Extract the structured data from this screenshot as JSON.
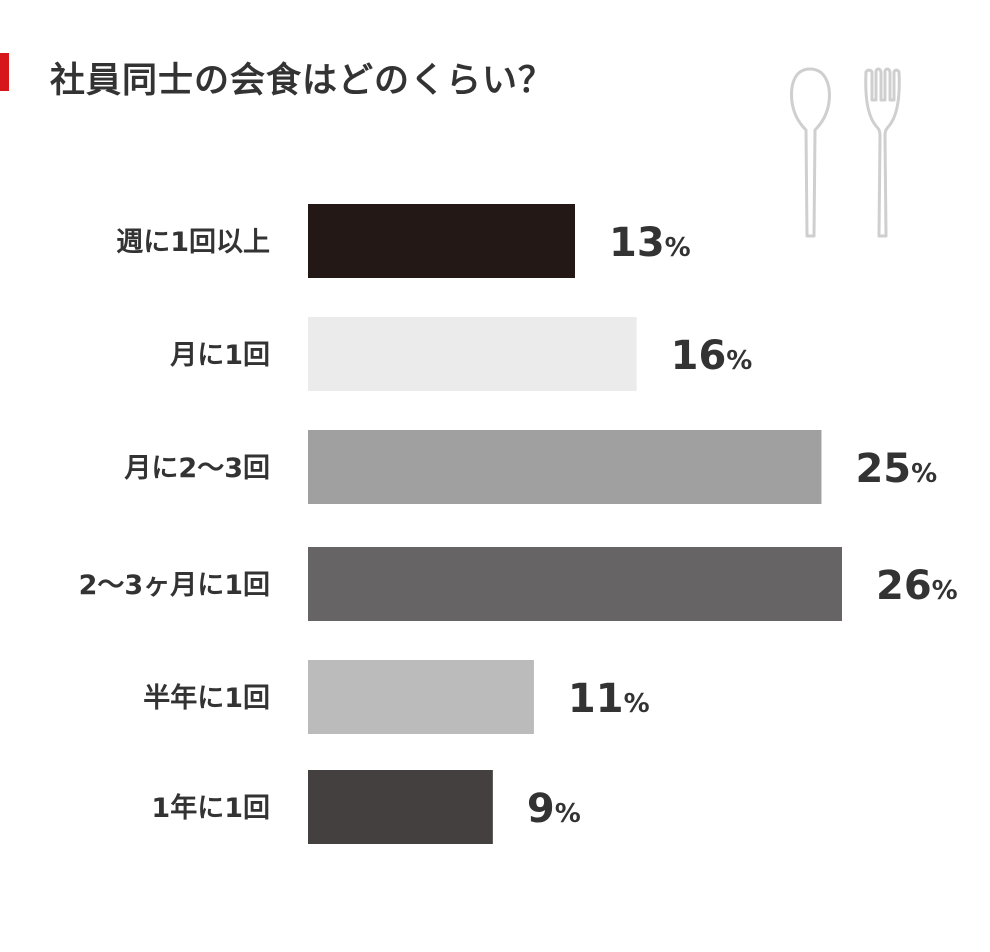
{
  "title": "社員同士の会食はどのくらい？",
  "colors": {
    "accent": "#d7161c",
    "text": "#333333",
    "cutlery": "#cfcfcf"
  },
  "icons": [
    "spoon-icon",
    "fork-icon"
  ],
  "chart_data": {
    "type": "bar",
    "orientation": "horizontal",
    "categories": [
      "週に1回以上",
      "月に1回",
      "月に2〜3回",
      "2〜3ヶ月に1回",
      "半年に1回",
      "1年に1回"
    ],
    "values": [
      13,
      16,
      25,
      26,
      11,
      9
    ],
    "value_suffix": "%",
    "bar_colors": [
      "#231815",
      "#ebebeb",
      "#a0a0a0",
      "#666464",
      "#bbbbbb",
      "#444040"
    ],
    "xlim": [
      0,
      26
    ],
    "grid": false,
    "legend": "none"
  }
}
